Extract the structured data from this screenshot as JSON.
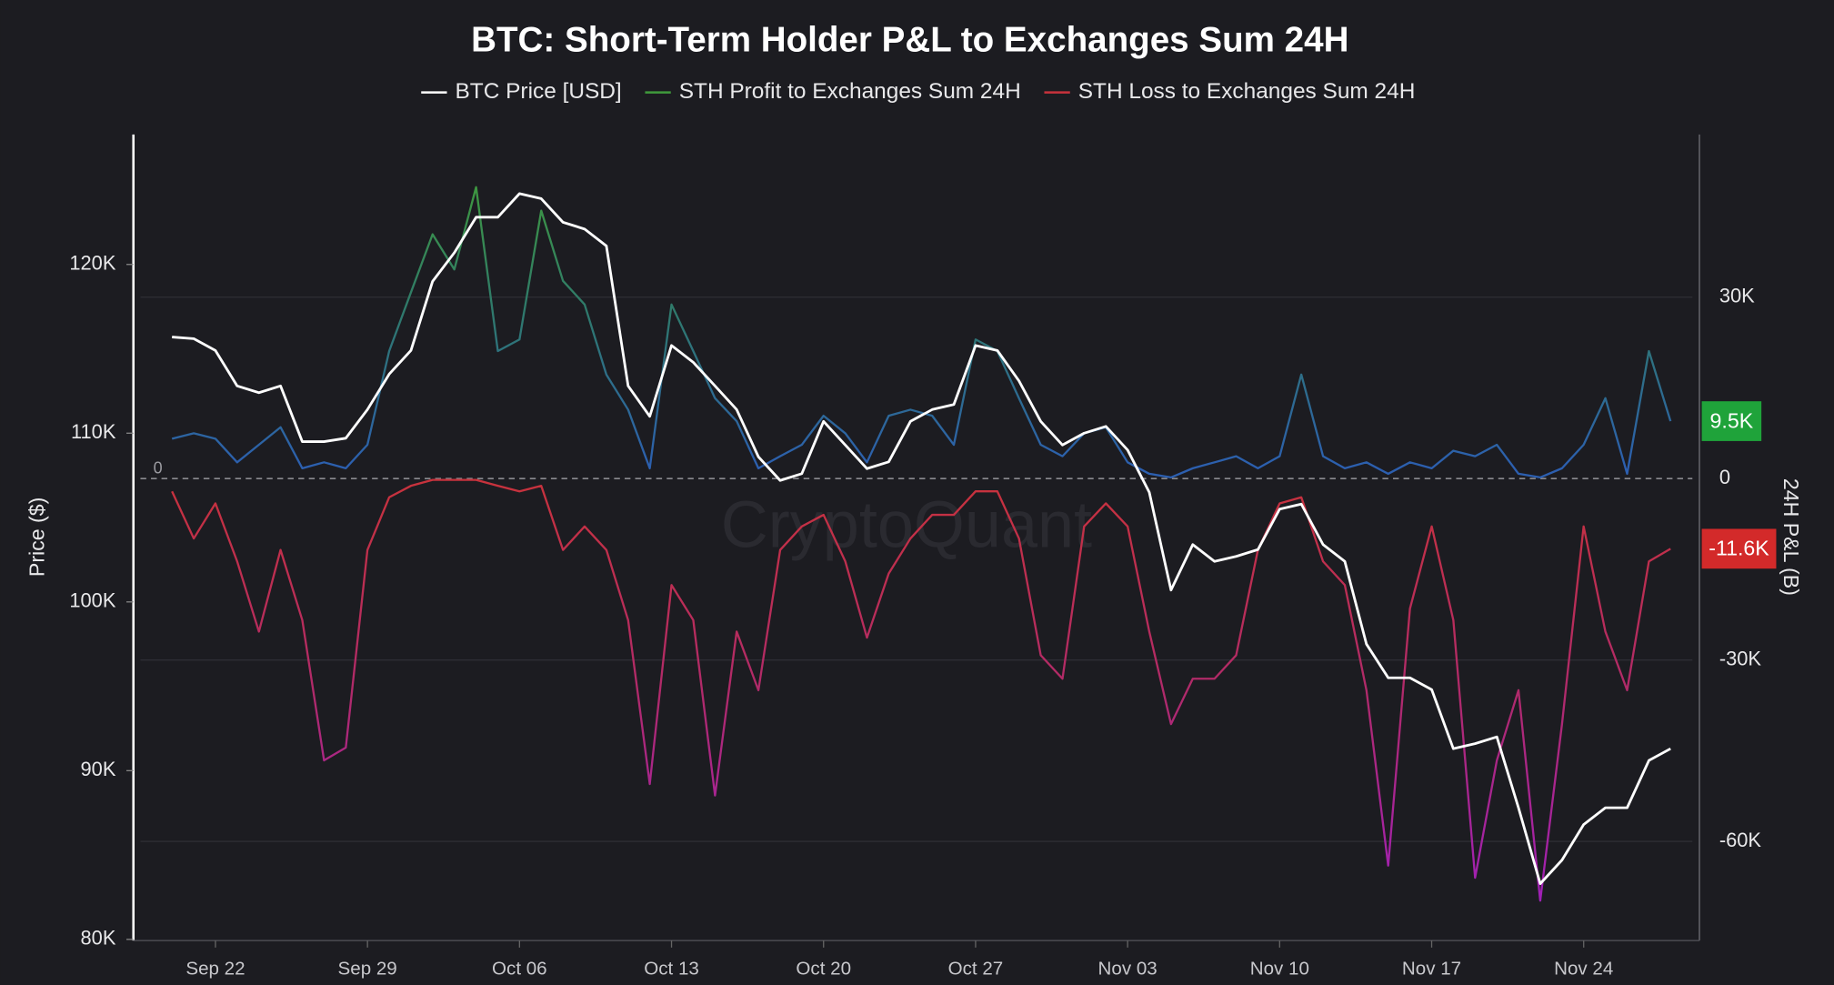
{
  "chart_data": {
    "type": "line",
    "title": "BTC: Short-Term Holder P&L to Exchanges Sum 24H",
    "ylabel": "Price ($)",
    "y2label": "24H P&L (B)",
    "watermark": "CryptoQuant",
    "x": [
      "Sep 20",
      "Sep 21",
      "Sep 22",
      "Sep 23",
      "Sep 24",
      "Sep 25",
      "Sep 26",
      "Sep 27",
      "Sep 28",
      "Sep 29",
      "Sep 30",
      "Oct 01",
      "Oct 02",
      "Oct 03",
      "Oct 04",
      "Oct 05",
      "Oct 06",
      "Oct 07",
      "Oct 08",
      "Oct 09",
      "Oct 10",
      "Oct 11",
      "Oct 12",
      "Oct 13",
      "Oct 14",
      "Oct 15",
      "Oct 16",
      "Oct 17",
      "Oct 18",
      "Oct 19",
      "Oct 20",
      "Oct 21",
      "Oct 22",
      "Oct 23",
      "Oct 24",
      "Oct 25",
      "Oct 26",
      "Oct 27",
      "Oct 28",
      "Oct 29",
      "Oct 30",
      "Oct 31",
      "Nov 01",
      "Nov 02",
      "Nov 03",
      "Nov 04",
      "Nov 05",
      "Nov 06",
      "Nov 07",
      "Nov 08",
      "Nov 09",
      "Nov 10",
      "Nov 11",
      "Nov 12",
      "Nov 13",
      "Nov 14",
      "Nov 15",
      "Nov 16",
      "Nov 17",
      "Nov 18",
      "Nov 19",
      "Nov 20",
      "Nov 21",
      "Nov 22",
      "Nov 23",
      "Nov 24",
      "Nov 25",
      "Nov 26",
      "Nov 27",
      "Nov 28"
    ],
    "xticks": [
      "Sep 22",
      "Sep 29",
      "Oct 06",
      "Oct 13",
      "Oct 20",
      "Oct 27",
      "Nov 03",
      "Nov 10",
      "Nov 17",
      "Nov 24"
    ],
    "ylim": [
      80,
      127.7
    ],
    "yticks": [
      {
        "value": 80,
        "label": "80K"
      },
      {
        "value": 90,
        "label": "90K"
      },
      {
        "value": 100,
        "label": "100K"
      },
      {
        "value": 110,
        "label": "110K"
      },
      {
        "value": 120,
        "label": "120K"
      }
    ],
    "y2lim": [
      -76.2,
      56.9
    ],
    "y2ticks": [
      {
        "value": -60,
        "label": "-60K"
      },
      {
        "value": -30,
        "label": "-30K"
      },
      0,
      {
        "value": 30,
        "label": "30K"
      }
    ],
    "grid": true,
    "series": [
      {
        "name": "BTC Price [USD]",
        "color": "#ffffff",
        "axis": "y",
        "values": [
          115.7,
          115.6,
          114.9,
          112.8,
          112.4,
          112.8,
          109.5,
          109.5,
          109.7,
          111.4,
          113.5,
          114.9,
          119.0,
          120.7,
          122.8,
          122.8,
          124.2,
          123.9,
          122.5,
          122.1,
          121.1,
          112.8,
          111.0,
          115.2,
          114.2,
          112.8,
          111.4,
          108.6,
          107.2,
          107.6,
          110.7,
          109.3,
          107.9,
          108.3,
          110.7,
          111.4,
          111.7,
          115.2,
          114.9,
          113.1,
          110.7,
          109.3,
          110.0,
          110.4,
          109.0,
          106.5,
          100.7,
          103.4,
          102.4,
          102.7,
          103.1,
          105.5,
          105.8,
          103.4,
          102.4,
          97.5,
          95.5,
          95.5,
          94.8,
          91.3,
          91.6,
          92.0,
          87.8,
          83.3,
          84.7,
          86.8,
          87.8,
          87.8,
          90.6,
          91.3
        ]
      },
      {
        "name": "STH Profit to Exchanges Sum 24H",
        "color": "#3f9a3c",
        "axis": "y2",
        "end_label": "9.5K",
        "values": [
          6.6,
          7.5,
          6.6,
          2.7,
          5.6,
          8.5,
          1.7,
          2.7,
          1.7,
          5.6,
          21.1,
          30.8,
          40.4,
          34.6,
          48.2,
          21.1,
          23.0,
          44.3,
          32.7,
          28.8,
          17.2,
          11.4,
          1.7,
          28.8,
          21.1,
          13.3,
          9.5,
          1.7,
          3.7,
          5.6,
          10.4,
          7.5,
          2.7,
          10.4,
          11.4,
          10.4,
          5.6,
          23.0,
          21.1,
          13.3,
          5.6,
          3.7,
          7.5,
          8.5,
          2.7,
          0.8,
          0.2,
          1.7,
          2.7,
          3.7,
          1.7,
          3.7,
          17.2,
          3.7,
          1.7,
          2.7,
          0.8,
          2.7,
          1.7,
          4.6,
          3.7,
          5.6,
          0.8,
          0.2,
          1.7,
          5.6,
          13.3,
          0.8,
          21.1,
          9.5
        ]
      },
      {
        "name": "STH Loss to Exchanges Sum 24H",
        "color": "#c8323c",
        "axis": "y2",
        "end_label": "-11.6K",
        "values": [
          -2.1,
          -9.9,
          -4.1,
          -13.7,
          -25.3,
          -11.8,
          -23.4,
          -46.6,
          -44.5,
          -11.8,
          -3.1,
          -1.2,
          -0.2,
          -0.2,
          -0.2,
          -1.2,
          -2.1,
          -1.2,
          -11.8,
          -7.9,
          -11.8,
          -23.4,
          -50.5,
          -17.6,
          -23.4,
          -52.4,
          -25.3,
          -35.0,
          -11.8,
          -7.9,
          -6.0,
          -13.7,
          -26.3,
          -15.7,
          -9.9,
          -6.0,
          -6.0,
          -2.1,
          -2.1,
          -9.9,
          -29.2,
          -33.1,
          -7.9,
          -4.1,
          -7.9,
          -25.3,
          -40.6,
          -33.1,
          -33.1,
          -29.2,
          -11.8,
          -4.1,
          -3.1,
          -13.7,
          -17.6,
          -35.0,
          -64.0,
          -21.5,
          -7.9,
          -23.4,
          -66.0,
          -46.6,
          -35.0,
          -69.8,
          -40.6,
          -7.9,
          -25.3,
          -35.0,
          -13.7,
          -11.6
        ]
      }
    ]
  }
}
